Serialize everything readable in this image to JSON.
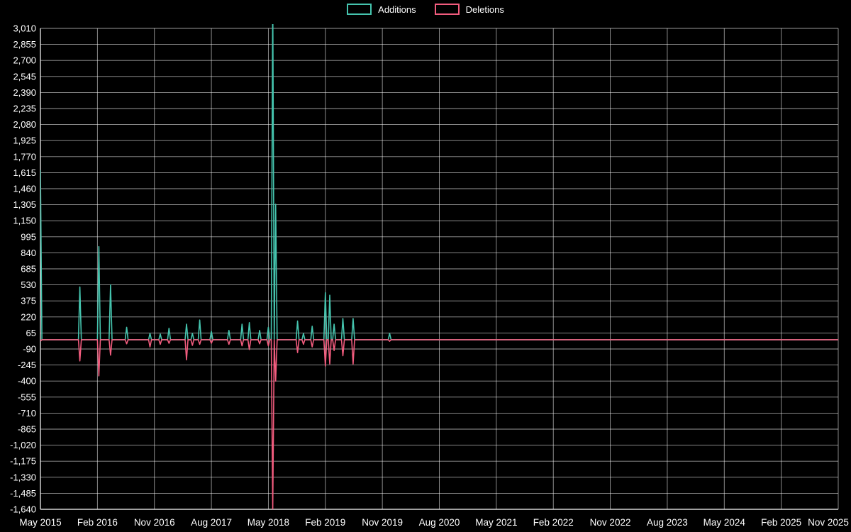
{
  "legend": {
    "items": [
      {
        "label": "Additions",
        "color": "#45c4ae"
      },
      {
        "label": "Deletions",
        "color": "#f25c7e"
      }
    ]
  },
  "chart_data": {
    "type": "line",
    "title": "",
    "background": "#000000",
    "legend_position": "top-center",
    "grid": true,
    "colors": {
      "grid": "rgba(255,255,255,0.6)",
      "axis": "#ffffff",
      "text": "#ffffff"
    },
    "x_axis": {
      "labels": [
        "May 2015",
        "Feb 2016",
        "Nov 2016",
        "Aug 2017",
        "May 2018",
        "Feb 2019",
        "Nov 2019",
        "Aug 2020",
        "May 2021",
        "Feb 2022",
        "Nov 2022",
        "Aug 2023",
        "May 2024",
        "Feb 2025",
        "Nov 2025"
      ],
      "months_per_label": 9,
      "range_months": 126
    },
    "y_axis": {
      "max": 3010,
      "min": -1640,
      "step": 155,
      "tick_labels": [
        "3,010",
        "2,855",
        "2,700",
        "2,545",
        "2,390",
        "2,235",
        "2,080",
        "1,925",
        "1,770",
        "1,615",
        "1,460",
        "1,305",
        "1,150",
        "995",
        "840",
        "685",
        "530",
        "375",
        "220",
        "65",
        "-90",
        "-245",
        "-400",
        "-555",
        "-710",
        "-865",
        "-1,020",
        "-1,175",
        "-1,330",
        "-1,485",
        "-1,640"
      ]
    },
    "series": [
      {
        "name": "Additions",
        "color": "#45c4ae",
        "events": [
          [
            0,
            1640
          ],
          [
            6.3,
            510
          ],
          [
            9.3,
            900
          ],
          [
            11,
            530
          ],
          [
            13.6,
            120
          ],
          [
            17.4,
            60
          ],
          [
            18.9,
            55
          ],
          [
            20.2,
            110
          ],
          [
            23,
            150
          ],
          [
            23.9,
            60
          ],
          [
            25.1,
            190
          ],
          [
            26.9,
            80
          ],
          [
            29.7,
            90
          ],
          [
            31.9,
            150
          ],
          [
            33.1,
            165
          ],
          [
            34.5,
            90
          ],
          [
            36,
            120
          ],
          [
            36.6,
            3300
          ],
          [
            37.2,
            1310
          ],
          [
            40.7,
            180
          ],
          [
            41.6,
            60
          ],
          [
            43,
            130
          ],
          [
            45,
            455
          ],
          [
            45.7,
            430
          ],
          [
            46.4,
            150
          ],
          [
            47.7,
            205
          ],
          [
            49.4,
            205
          ],
          [
            55.2,
            60
          ]
        ]
      },
      {
        "name": "Deletions",
        "color": "#f25c7e",
        "events": [
          [
            0,
            -15
          ],
          [
            6.3,
            -205
          ],
          [
            9.3,
            -350
          ],
          [
            11,
            -150
          ],
          [
            13.6,
            -40
          ],
          [
            17.4,
            -70
          ],
          [
            18.9,
            -45
          ],
          [
            20.2,
            -35
          ],
          [
            23,
            -195
          ],
          [
            23.9,
            -55
          ],
          [
            25.1,
            -45
          ],
          [
            26.9,
            -35
          ],
          [
            29.7,
            -45
          ],
          [
            31.9,
            -60
          ],
          [
            33.1,
            -95
          ],
          [
            34.5,
            -40
          ],
          [
            36,
            -60
          ],
          [
            36.6,
            -1640
          ],
          [
            37.2,
            -400
          ],
          [
            40.7,
            -125
          ],
          [
            41.6,
            -45
          ],
          [
            43,
            -70
          ],
          [
            45,
            -255
          ],
          [
            45.7,
            -235
          ],
          [
            46.4,
            -105
          ],
          [
            47.7,
            -155
          ],
          [
            49.4,
            -235
          ],
          [
            55.2,
            -15
          ]
        ]
      }
    ]
  }
}
